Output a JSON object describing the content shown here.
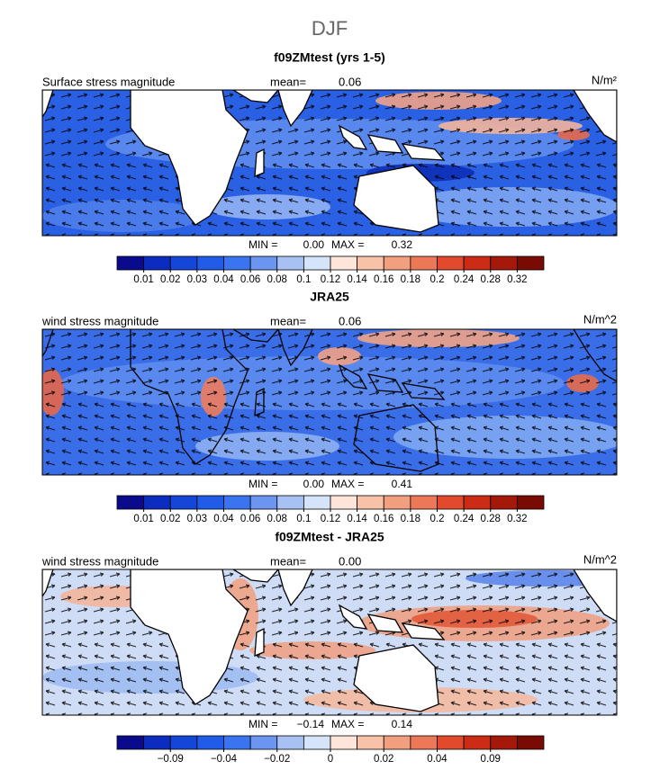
{
  "title": "DJF",
  "colorbar_colors": [
    "#0a0a8c",
    "#0c2cc0",
    "#1446d8",
    "#205ce8",
    "#3a74f0",
    "#6b95f0",
    "#a8c1f3",
    "#d6e4f9",
    "#fde5d9",
    "#f8c2a8",
    "#f29f80",
    "#ec7857",
    "#e14a2c",
    "#cc2b16",
    "#a5190b",
    "#7a0a04"
  ],
  "panels": [
    {
      "title": "f09ZMtest (yrs 1-5)",
      "variable": "Surface stress magnitude",
      "mean_label": "mean=",
      "mean": 0.06,
      "units": "N/m²",
      "min_label": "MIN =",
      "min": {
        "value": 0,
        "label": "0.00"
      },
      "max_label": "MAX =",
      "max": 0.32,
      "ticks": [
        0.01,
        0.02,
        0.03,
        0.04,
        0.06,
        0.08,
        0.1,
        0.12,
        0.14,
        0.16,
        0.18,
        0.2,
        0.24,
        0.28,
        0.32
      ]
    },
    {
      "title": "JRA25",
      "variable": "wind stress magnitude",
      "mean_label": "mean=",
      "mean": 0.06,
      "units": "N/m^2",
      "min_label": "MIN =",
      "min": {
        "value": 0,
        "label": "0.00"
      },
      "max_label": "MAX =",
      "max": 0.41,
      "ticks": [
        0.01,
        0.02,
        0.03,
        0.04,
        0.06,
        0.08,
        0.1,
        0.12,
        0.14,
        0.16,
        0.18,
        0.2,
        0.24,
        0.28,
        0.32
      ]
    },
    {
      "title": "f09ZMtest - JRA25",
      "variable": "wind stress magnitude",
      "mean_label": "mean=",
      "mean": {
        "value": 0,
        "label": "0.00"
      },
      "units": "N/m^2",
      "min_label": "MIN =",
      "min": {
        "value": -0.14,
        "label": "−0.14"
      },
      "max_label": "MAX =",
      "max": 0.14,
      "ticks": [
        {
          "value": -0.09,
          "label": "−0.09"
        },
        {
          "value": -0.04,
          "label": "−0.04"
        },
        {
          "value": -0.02,
          "label": "−0.02"
        },
        0,
        0.02,
        0.04,
        0.09
      ]
    }
  ]
}
